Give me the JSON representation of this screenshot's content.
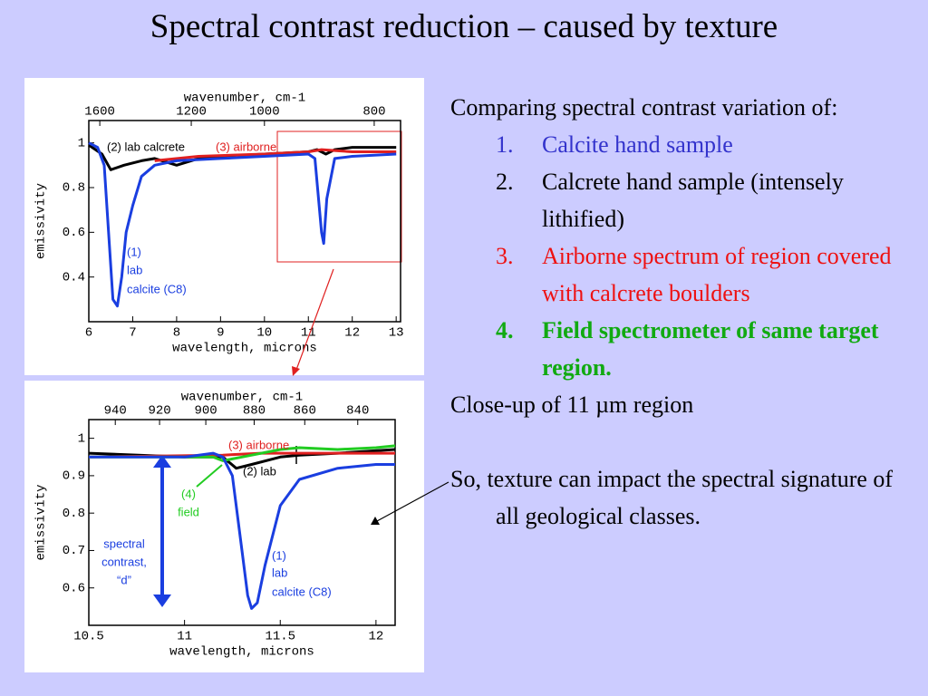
{
  "title": "Spectral contrast reduction – caused by texture",
  "text": {
    "intro": "Comparing spectral contrast variation of:",
    "items": [
      {
        "number": "1.",
        "text": "Calcite hand sample",
        "color": "#3333cc",
        "bold": false
      },
      {
        "number": "2.",
        "text": "Calcrete hand sample (intensely lithified)",
        "color": "#000000",
        "bold": false
      },
      {
        "number": "3.",
        "text": "Airborne spectrum of region covered with calcrete boulders",
        "color": "#ee1111",
        "bold": false
      },
      {
        "number": "4.",
        "text": "Field spectrometer of same target region.",
        "color": "#11aa11",
        "bold": true
      }
    ],
    "closeup": "Close-up of 11 µm region",
    "conclusion": "So, texture can impact the spectral signature of all geological classes."
  },
  "chart_data": [
    {
      "type": "line",
      "x2_label": "wavenumber, cm-1",
      "x_label": "wavelength, microns",
      "y_label": "emissivity",
      "xlim": [
        6,
        13.1
      ],
      "xticks": [
        6,
        7,
        8,
        9,
        10,
        11,
        12,
        13
      ],
      "x2ticks": [
        1600,
        1200,
        1000,
        800
      ],
      "ylim": [
        0.2,
        1.1
      ],
      "yticks": [
        1,
        0.8,
        0.6,
        0.4
      ],
      "series": [
        {
          "color": "#000000",
          "x": [
            6.0,
            6.3,
            6.5,
            6.8,
            7.2,
            7.5,
            8,
            8.5,
            9,
            10,
            11,
            11.2,
            11.4,
            11.6,
            12,
            13
          ],
          "values": [
            0.99,
            0.95,
            0.88,
            0.9,
            0.92,
            0.93,
            0.9,
            0.93,
            0.94,
            0.95,
            0.96,
            0.97,
            0.95,
            0.97,
            0.98,
            0.98
          ]
        },
        {
          "color": "#e02020",
          "x": [
            7.5,
            8.5,
            10,
            11,
            11.3,
            12,
            13
          ],
          "values": [
            0.92,
            0.94,
            0.95,
            0.96,
            0.97,
            0.96,
            0.96
          ]
        },
        {
          "color": "#1a3ee0",
          "x": [
            6.0,
            6.2,
            6.35,
            6.45,
            6.55,
            6.65,
            6.75,
            6.85,
            7.0,
            7.2,
            7.5,
            8,
            9,
            10,
            11,
            11.15,
            11.3,
            11.35,
            11.42,
            11.6,
            12,
            13
          ],
          "values": [
            1.0,
            0.98,
            0.9,
            0.6,
            0.3,
            0.27,
            0.4,
            0.6,
            0.72,
            0.85,
            0.9,
            0.92,
            0.93,
            0.94,
            0.95,
            0.93,
            0.6,
            0.55,
            0.75,
            0.93,
            0.94,
            0.95
          ]
        }
      ],
      "annotations": [
        {
          "text": "(2) lab calcrete",
          "color": "#000000"
        },
        {
          "text": "(3) airborne",
          "color": "#e02020"
        },
        {
          "text": "(1)",
          "color": "#1a3ee0"
        },
        {
          "text": "lab",
          "color": "#1a3ee0"
        },
        {
          "text": "calcite (C8)",
          "color": "#1a3ee0"
        }
      ]
    },
    {
      "type": "line",
      "x2_label": "wavenumber, cm-1",
      "x_label": "wavelength, microns",
      "y_label": "emissivity",
      "xlim": [
        10.5,
        12.1
      ],
      "xticks": [
        10.5,
        11,
        11.5,
        12
      ],
      "x2ticks": [
        940,
        920,
        900,
        880,
        860,
        840
      ],
      "ylim": [
        0.5,
        1.05
      ],
      "yticks": [
        1,
        0.9,
        0.8,
        0.7,
        0.6
      ],
      "series": [
        {
          "color": "#000000",
          "x": [
            10.5,
            11,
            11.2,
            11.27,
            11.35,
            11.5,
            11.6,
            11.8,
            12.1
          ],
          "values": [
            0.96,
            0.95,
            0.95,
            0.92,
            0.93,
            0.95,
            0.955,
            0.96,
            0.97
          ]
        },
        {
          "color": "#e02020",
          "x": [
            10.5,
            11.2,
            11.4,
            11.6,
            12.1
          ],
          "values": [
            0.95,
            0.955,
            0.96,
            0.96,
            0.96
          ]
        },
        {
          "color": "#22cc22",
          "x": [
            10.5,
            11,
            11.15,
            11.2,
            11.3,
            11.5,
            11.6,
            11.8,
            12,
            12.1
          ],
          "values": [
            0.95,
            0.95,
            0.95,
            0.94,
            0.95,
            0.97,
            0.975,
            0.97,
            0.975,
            0.98
          ]
        },
        {
          "color": "#1a3ee0",
          "x": [
            10.5,
            11,
            11.15,
            11.2,
            11.25,
            11.3,
            11.33,
            11.35,
            11.38,
            11.42,
            11.5,
            11.6,
            11.8,
            12,
            12.1
          ],
          "values": [
            0.95,
            0.95,
            0.96,
            0.95,
            0.9,
            0.7,
            0.58,
            0.545,
            0.56,
            0.66,
            0.82,
            0.89,
            0.92,
            0.93,
            0.93
          ]
        }
      ],
      "annotations": [
        {
          "text": "(3) airborne",
          "color": "#e02020"
        },
        {
          "text": "(2) lab",
          "color": "#000000"
        },
        {
          "text": "(4)",
          "color": "#22cc22"
        },
        {
          "text": "field",
          "color": "#22cc22"
        },
        {
          "text": "(1)",
          "color": "#1a3ee0"
        },
        {
          "text": "lab",
          "color": "#1a3ee0"
        },
        {
          "text": "calcite (C8)",
          "color": "#1a3ee0"
        },
        {
          "text": "spectral",
          "color": "#1a3ee0"
        },
        {
          "text": "contrast,",
          "color": "#1a3ee0"
        },
        {
          "text": "“d”",
          "color": "#1a3ee0"
        }
      ]
    }
  ]
}
